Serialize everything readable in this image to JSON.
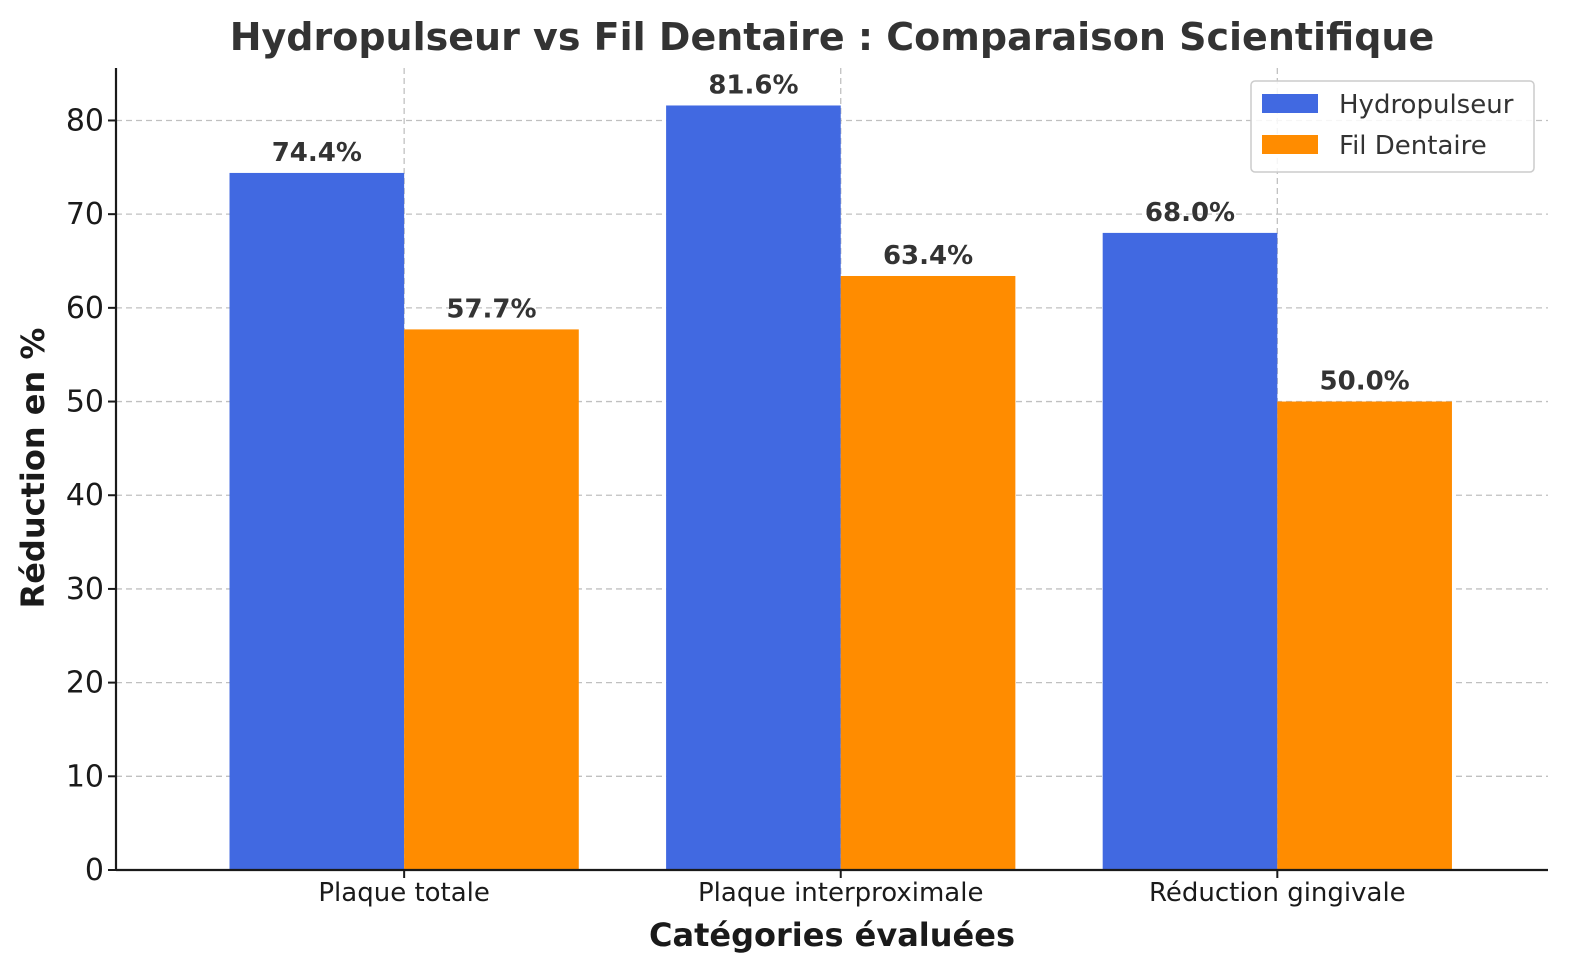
{
  "chart_data": {
    "type": "bar",
    "title": "Hydropulseur vs Fil Dentaire : Comparaison Scientifique",
    "xlabel": "Catégories évaluées",
    "ylabel": "Réduction en %",
    "categories": [
      "Plaque totale",
      "Plaque interproximale",
      "Réduction gingivale"
    ],
    "series": [
      {
        "name": "Hydropulseur",
        "values": [
          74.4,
          81.6,
          68.0
        ],
        "labels": [
          "74.4%",
          "81.6%",
          "68.0%"
        ],
        "color": "#4169E1"
      },
      {
        "name": "Fil Dentaire",
        "values": [
          57.7,
          63.4,
          50.0
        ],
        "labels": [
          "57.7%",
          "63.4%",
          "50.0%"
        ],
        "color": "#FF8C00"
      }
    ],
    "ylim": [
      0,
      85.6
    ],
    "yticks": [
      0,
      10,
      20,
      30,
      40,
      50,
      60,
      70,
      80
    ],
    "grid": true,
    "legend_position": "top-right"
  }
}
